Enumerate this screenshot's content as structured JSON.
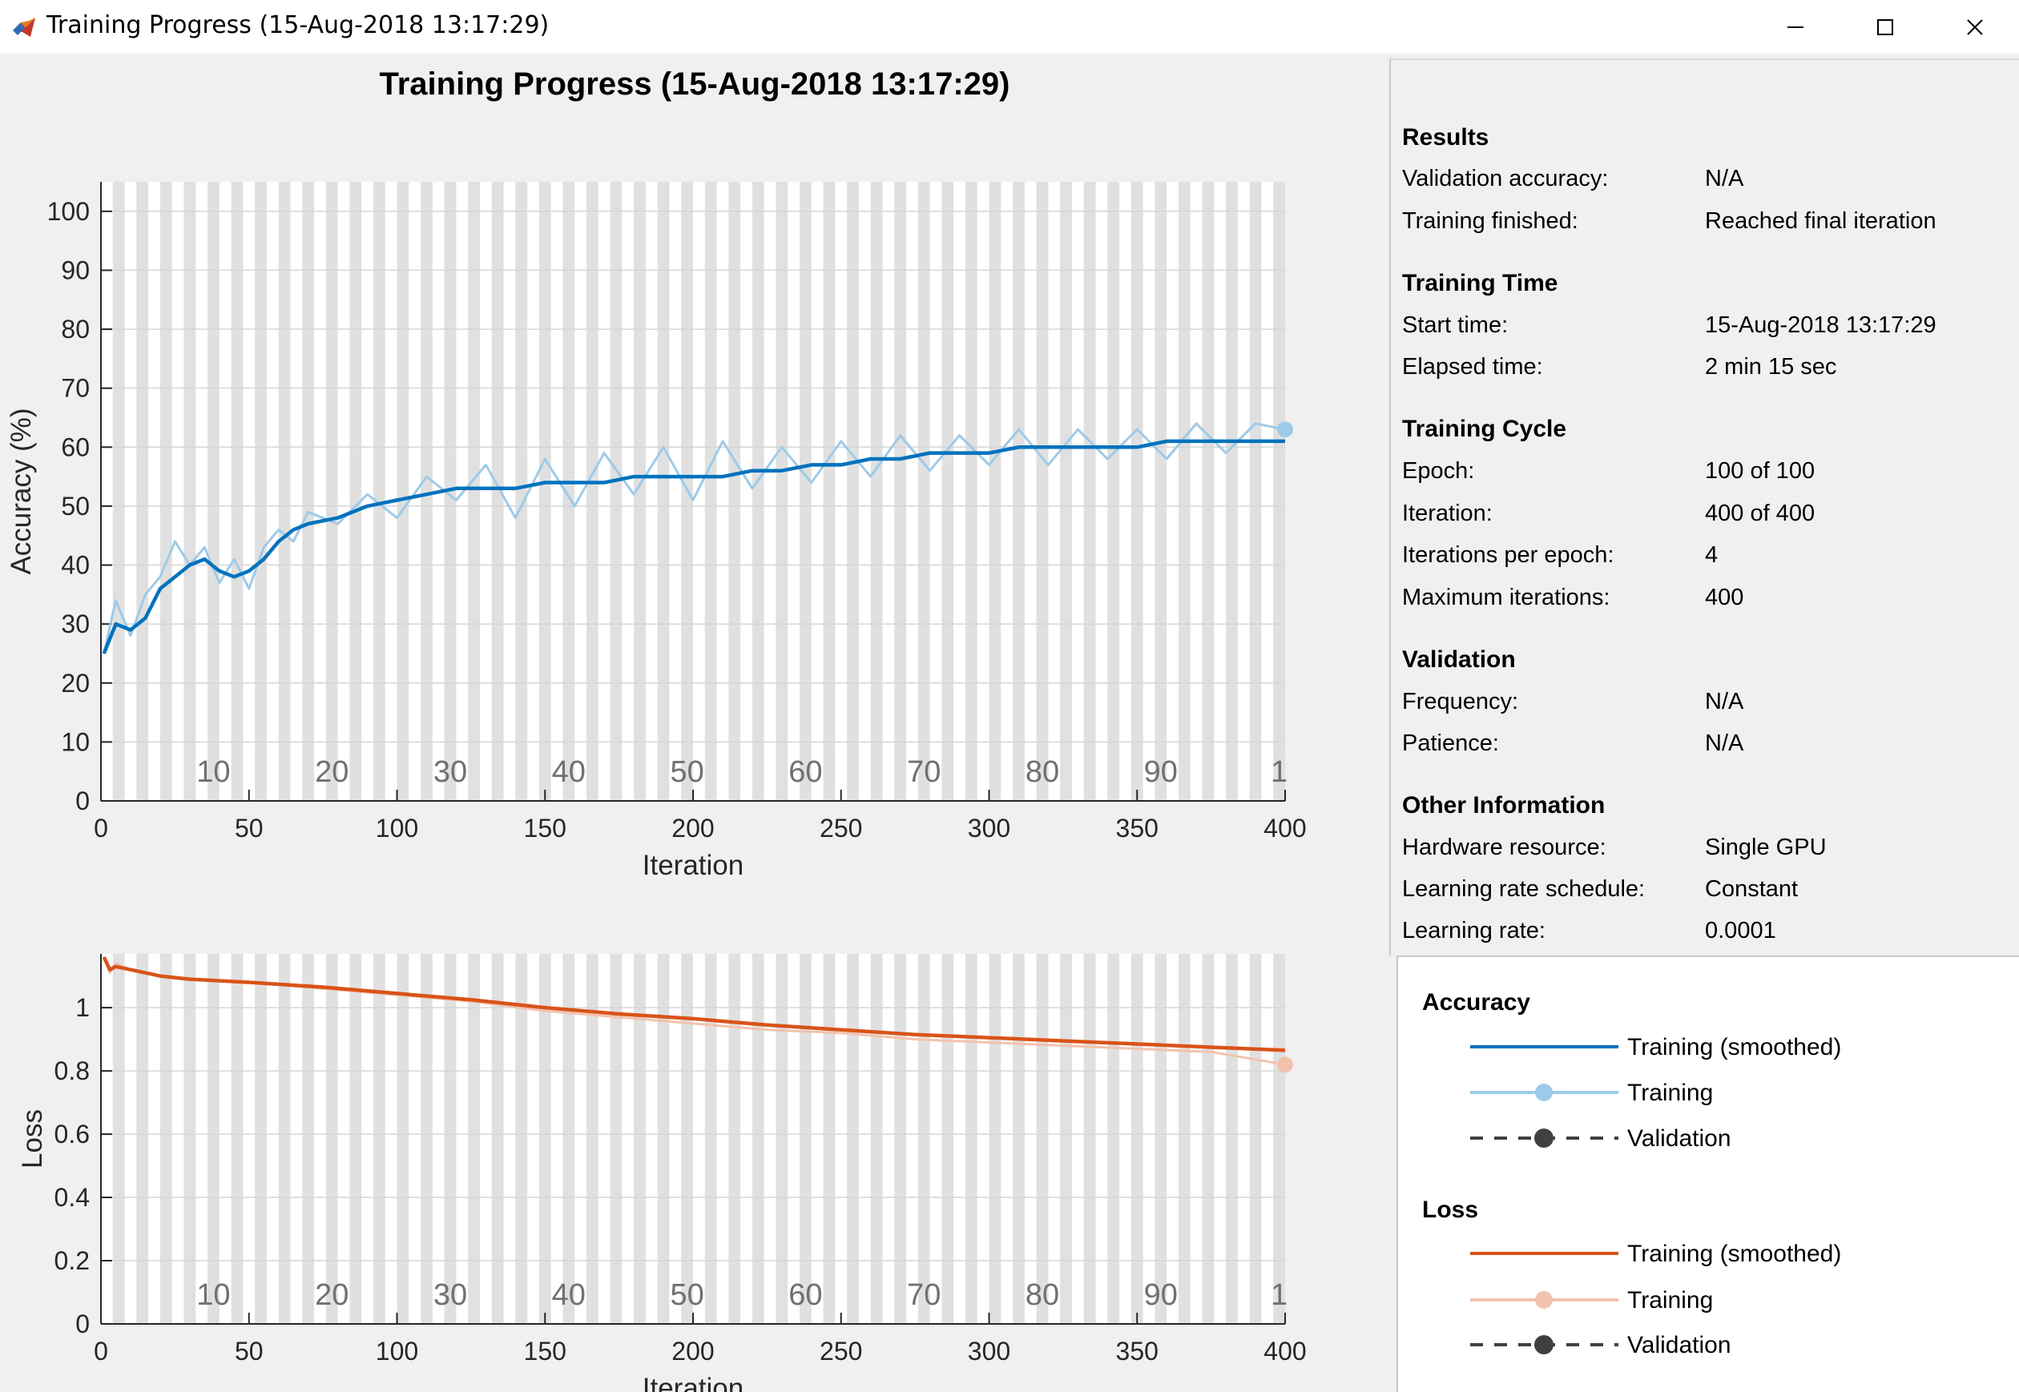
{
  "window": {
    "title": "Training Progress (15-Aug-2018 13:17:29)",
    "app_icon": "matlab-icon",
    "controls": [
      "minimize-icon",
      "maximize-icon",
      "close-icon"
    ]
  },
  "plot_title": "Training Progress (15-Aug-2018 13:17:29)",
  "info": {
    "results": {
      "title": "Results",
      "rows": [
        {
          "label": "Validation accuracy:",
          "value": "N/A"
        },
        {
          "label": "Training finished:",
          "value": "Reached final iteration"
        }
      ]
    },
    "training_time": {
      "title": "Training Time",
      "rows": [
        {
          "label": "Start time:",
          "value": "15-Aug-2018 13:17:29"
        },
        {
          "label": "Elapsed time:",
          "value": "2 min 15 sec"
        }
      ]
    },
    "training_cycle": {
      "title": "Training Cycle",
      "rows": [
        {
          "label": "Epoch:",
          "value": "100 of 100"
        },
        {
          "label": "Iteration:",
          "value": "400 of 400"
        },
        {
          "label": "Iterations per epoch:",
          "value": "4"
        },
        {
          "label": "Maximum iterations:",
          "value": "400"
        }
      ]
    },
    "validation": {
      "title": "Validation",
      "rows": [
        {
          "label": "Frequency:",
          "value": "N/A"
        },
        {
          "label": "Patience:",
          "value": "N/A"
        }
      ]
    },
    "other": {
      "title": "Other Information",
      "rows": [
        {
          "label": "Hardware resource:",
          "value": "Single GPU"
        },
        {
          "label": "Learning rate schedule:",
          "value": "Constant"
        },
        {
          "label": "Learning rate:",
          "value": "0.0001"
        }
      ]
    }
  },
  "legend": {
    "accuracy": {
      "title": "Accuracy",
      "entries": [
        "Training (smoothed)",
        "Training",
        "Validation"
      ]
    },
    "loss": {
      "title": "Loss",
      "entries": [
        "Training (smoothed)",
        "Training",
        "Validation"
      ]
    }
  },
  "colors": {
    "accuracy_smoothed": "#0072BD",
    "accuracy_raw": "#9ECAE9",
    "loss_smoothed": "#D95319",
    "loss_raw": "#F3C2AD",
    "validation": "#404040",
    "epoch_band": "#e0e0e0"
  },
  "chart_data": [
    {
      "type": "line",
      "title": "",
      "xlabel": "Iteration",
      "ylabel": "Accuracy (%)",
      "xlim": [
        0,
        400
      ],
      "ylim": [
        0,
        105
      ],
      "xticks": [
        0,
        50,
        100,
        150,
        200,
        250,
        300,
        350,
        400
      ],
      "yticks": [
        0,
        10,
        20,
        30,
        40,
        50,
        60,
        70,
        80,
        90,
        100
      ],
      "epoch_labels": [
        "10",
        "20",
        "30",
        "40",
        "50",
        "60",
        "70",
        "80",
        "90",
        "1"
      ],
      "epochs": 100,
      "iterations_per_epoch": 4,
      "series": [
        {
          "name": "Training (smoothed)",
          "x": [
            1,
            5,
            10,
            15,
            20,
            25,
            30,
            35,
            40,
            45,
            50,
            55,
            60,
            65,
            70,
            80,
            90,
            100,
            110,
            120,
            130,
            140,
            150,
            160,
            170,
            180,
            190,
            200,
            210,
            220,
            230,
            240,
            250,
            260,
            270,
            280,
            290,
            300,
            310,
            320,
            330,
            340,
            350,
            360,
            370,
            380,
            390,
            400
          ],
          "values": [
            25,
            30,
            29,
            31,
            36,
            38,
            40,
            41,
            39,
            38,
            39,
            41,
            44,
            46,
            47,
            48,
            50,
            51,
            52,
            53,
            53,
            53,
            54,
            54,
            54,
            55,
            55,
            55,
            55,
            56,
            56,
            57,
            57,
            58,
            58,
            59,
            59,
            59,
            60,
            60,
            60,
            60,
            60,
            61,
            61,
            61,
            61,
            61
          ]
        },
        {
          "name": "Training",
          "x": [
            1,
            5,
            10,
            15,
            20,
            25,
            30,
            35,
            40,
            45,
            50,
            55,
            60,
            65,
            70,
            80,
            90,
            100,
            110,
            120,
            130,
            140,
            150,
            160,
            170,
            180,
            190,
            200,
            210,
            220,
            230,
            240,
            250,
            260,
            270,
            280,
            290,
            300,
            310,
            320,
            330,
            340,
            350,
            360,
            370,
            380,
            390,
            400
          ],
          "values": [
            25,
            34,
            28,
            35,
            38,
            44,
            40,
            43,
            37,
            41,
            36,
            43,
            46,
            44,
            49,
            47,
            52,
            48,
            55,
            51,
            57,
            48,
            58,
            50,
            59,
            52,
            60,
            51,
            61,
            53,
            60,
            54,
            61,
            55,
            62,
            56,
            62,
            57,
            63,
            57,
            63,
            58,
            63,
            58,
            64,
            59,
            64,
            63
          ]
        }
      ]
    },
    {
      "type": "line",
      "title": "",
      "xlabel": "Iteration",
      "ylabel": "Loss",
      "xlim": [
        0,
        400
      ],
      "ylim": [
        0,
        1.17
      ],
      "xticks": [
        0,
        50,
        100,
        150,
        200,
        250,
        300,
        350,
        400
      ],
      "yticks": [
        0,
        0.2,
        0.4,
        0.6,
        0.8,
        1
      ],
      "epoch_labels": [
        "10",
        "20",
        "30",
        "40",
        "50",
        "60",
        "70",
        "80",
        "90",
        "1"
      ],
      "epochs": 100,
      "iterations_per_epoch": 4,
      "series": [
        {
          "name": "Training (smoothed)",
          "x": [
            1,
            3,
            5,
            10,
            20,
            30,
            50,
            75,
            100,
            125,
            150,
            175,
            200,
            225,
            250,
            275,
            300,
            325,
            350,
            375,
            400
          ],
          "values": [
            1.16,
            1.12,
            1.13,
            1.12,
            1.1,
            1.09,
            1.08,
            1.065,
            1.045,
            1.025,
            1.0,
            0.98,
            0.965,
            0.945,
            0.93,
            0.915,
            0.905,
            0.895,
            0.885,
            0.875,
            0.865
          ]
        },
        {
          "name": "Training",
          "x": [
            1,
            3,
            5,
            10,
            20,
            30,
            50,
            75,
            100,
            125,
            150,
            175,
            200,
            225,
            250,
            275,
            300,
            325,
            350,
            375,
            400
          ],
          "values": [
            1.16,
            1.11,
            1.14,
            1.12,
            1.1,
            1.09,
            1.08,
            1.06,
            1.04,
            1.02,
            0.99,
            0.97,
            0.95,
            0.93,
            0.92,
            0.9,
            0.89,
            0.88,
            0.87,
            0.86,
            0.82
          ]
        }
      ]
    }
  ]
}
